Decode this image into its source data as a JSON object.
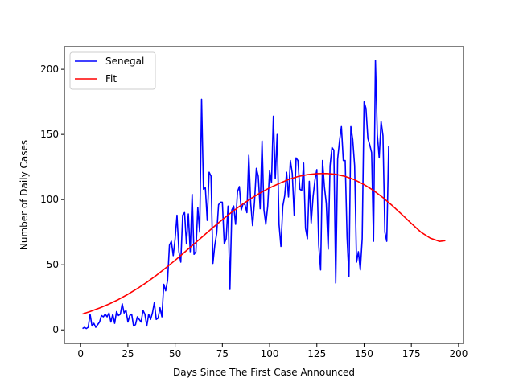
{
  "chart_data": {
    "type": "line",
    "title": "",
    "xlabel": "Days Since The First Case Announced",
    "ylabel": "Number of Daily Cases",
    "xlim": [
      -8.6,
      202.6
    ],
    "ylim": [
      -10.35,
      217.35
    ],
    "x_ticks": [
      0,
      25,
      50,
      75,
      100,
      125,
      150,
      175,
      200
    ],
    "y_ticks": [
      0,
      50,
      100,
      150,
      200
    ],
    "grid": false,
    "legend_position": "upper-left",
    "legend": [
      {
        "label": "Senegal",
        "color": "#0000ff"
      },
      {
        "label": "Fit",
        "color": "#ff0000"
      }
    ],
    "series": [
      {
        "name": "Senegal",
        "color": "#0000ff",
        "x": [
          1,
          2,
          3,
          4,
          5,
          6,
          7,
          8,
          9,
          10,
          11,
          12,
          13,
          14,
          15,
          16,
          17,
          18,
          19,
          20,
          21,
          22,
          23,
          24,
          25,
          26,
          27,
          28,
          29,
          30,
          31,
          32,
          33,
          34,
          35,
          36,
          37,
          38,
          39,
          40,
          41,
          42,
          43,
          44,
          45,
          46,
          47,
          48,
          49,
          50,
          51,
          52,
          53,
          54,
          55,
          56,
          57,
          58,
          59,
          60,
          61,
          62,
          63,
          64,
          65,
          66,
          67,
          68,
          69,
          70,
          71,
          72,
          73,
          74,
          75,
          76,
          77,
          78,
          79,
          80,
          81,
          82,
          83,
          84,
          85,
          86,
          87,
          88,
          89,
          90,
          91,
          92,
          93,
          94,
          95,
          96,
          97,
          98,
          99,
          100,
          101,
          102,
          103,
          104,
          105,
          106,
          107,
          108,
          109,
          110,
          111,
          112,
          113,
          114,
          115,
          116,
          117,
          118,
          119,
          120,
          121,
          122,
          123,
          124,
          125,
          126,
          127,
          128,
          129,
          130,
          131,
          132,
          133,
          134,
          135,
          136,
          137,
          138,
          139,
          140,
          141,
          142,
          143,
          144,
          145,
          146,
          147,
          148,
          149,
          150,
          151,
          152,
          153,
          154,
          155,
          156,
          157,
          158,
          159,
          160,
          161,
          162,
          163
        ],
        "y": [
          1,
          2,
          1,
          2,
          12,
          3,
          5,
          2,
          4,
          6,
          11,
          10,
          12,
          10,
          13,
          6,
          12,
          5,
          14,
          11,
          12,
          20,
          13,
          15,
          6,
          11,
          12,
          3,
          4,
          10,
          8,
          6,
          15,
          12,
          3,
          12,
          8,
          13,
          21,
          8,
          9,
          17,
          10,
          35,
          30,
          38,
          65,
          68,
          57,
          70,
          88,
          60,
          52,
          88,
          90,
          66,
          89,
          60,
          104,
          58,
          60,
          94,
          75,
          177,
          108,
          109,
          84,
          121,
          118,
          51,
          65,
          74,
          96,
          98,
          98,
          66,
          70,
          95,
          31,
          92,
          95,
          81,
          106,
          110,
          92,
          97,
          96,
          90,
          134,
          97,
          80,
          98,
          124,
          118,
          93,
          145,
          92,
          81,
          95,
          122,
          113,
          164,
          116,
          150,
          81,
          64,
          95,
          103,
          121,
          102,
          130,
          120,
          88,
          132,
          130,
          108,
          107,
          128,
          78,
          70,
          114,
          82,
          102,
          115,
          123,
          65,
          46,
          130,
          110,
          97,
          62,
          126,
          140,
          138,
          36,
          131,
          145,
          156,
          130,
          130,
          71,
          41,
          156,
          146,
          126,
          52,
          60,
          46,
          70,
          175,
          170,
          147,
          142,
          136,
          68,
          207,
          150,
          132,
          160,
          149,
          75,
          68,
          141
        ]
      },
      {
        "name": "Fit",
        "color": "#ff0000",
        "x": [
          1,
          5,
          10,
          15,
          20,
          25,
          30,
          35,
          40,
          45,
          50,
          55,
          60,
          65,
          70,
          75,
          80,
          85,
          90,
          95,
          100,
          105,
          110,
          115,
          120,
          125,
          130,
          135,
          140,
          145,
          150,
          155,
          160,
          165,
          170,
          175,
          180,
          185,
          190,
          193
        ],
        "y": [
          12.2,
          14.1,
          16.8,
          19.8,
          23.3,
          27.3,
          31.7,
          36.5,
          41.8,
          47.5,
          53.4,
          59.6,
          65.9,
          72.2,
          78.5,
          84.6,
          90.4,
          95.8,
          100.7,
          105.1,
          109,
          112.3,
          115.4,
          117.7,
          119.1,
          119.9,
          120,
          119.4,
          117.8,
          115.2,
          111.5,
          107,
          101.5,
          95.3,
          88.6,
          81.7,
          75.1,
          70.4,
          67.9,
          68.5
        ]
      }
    ]
  }
}
